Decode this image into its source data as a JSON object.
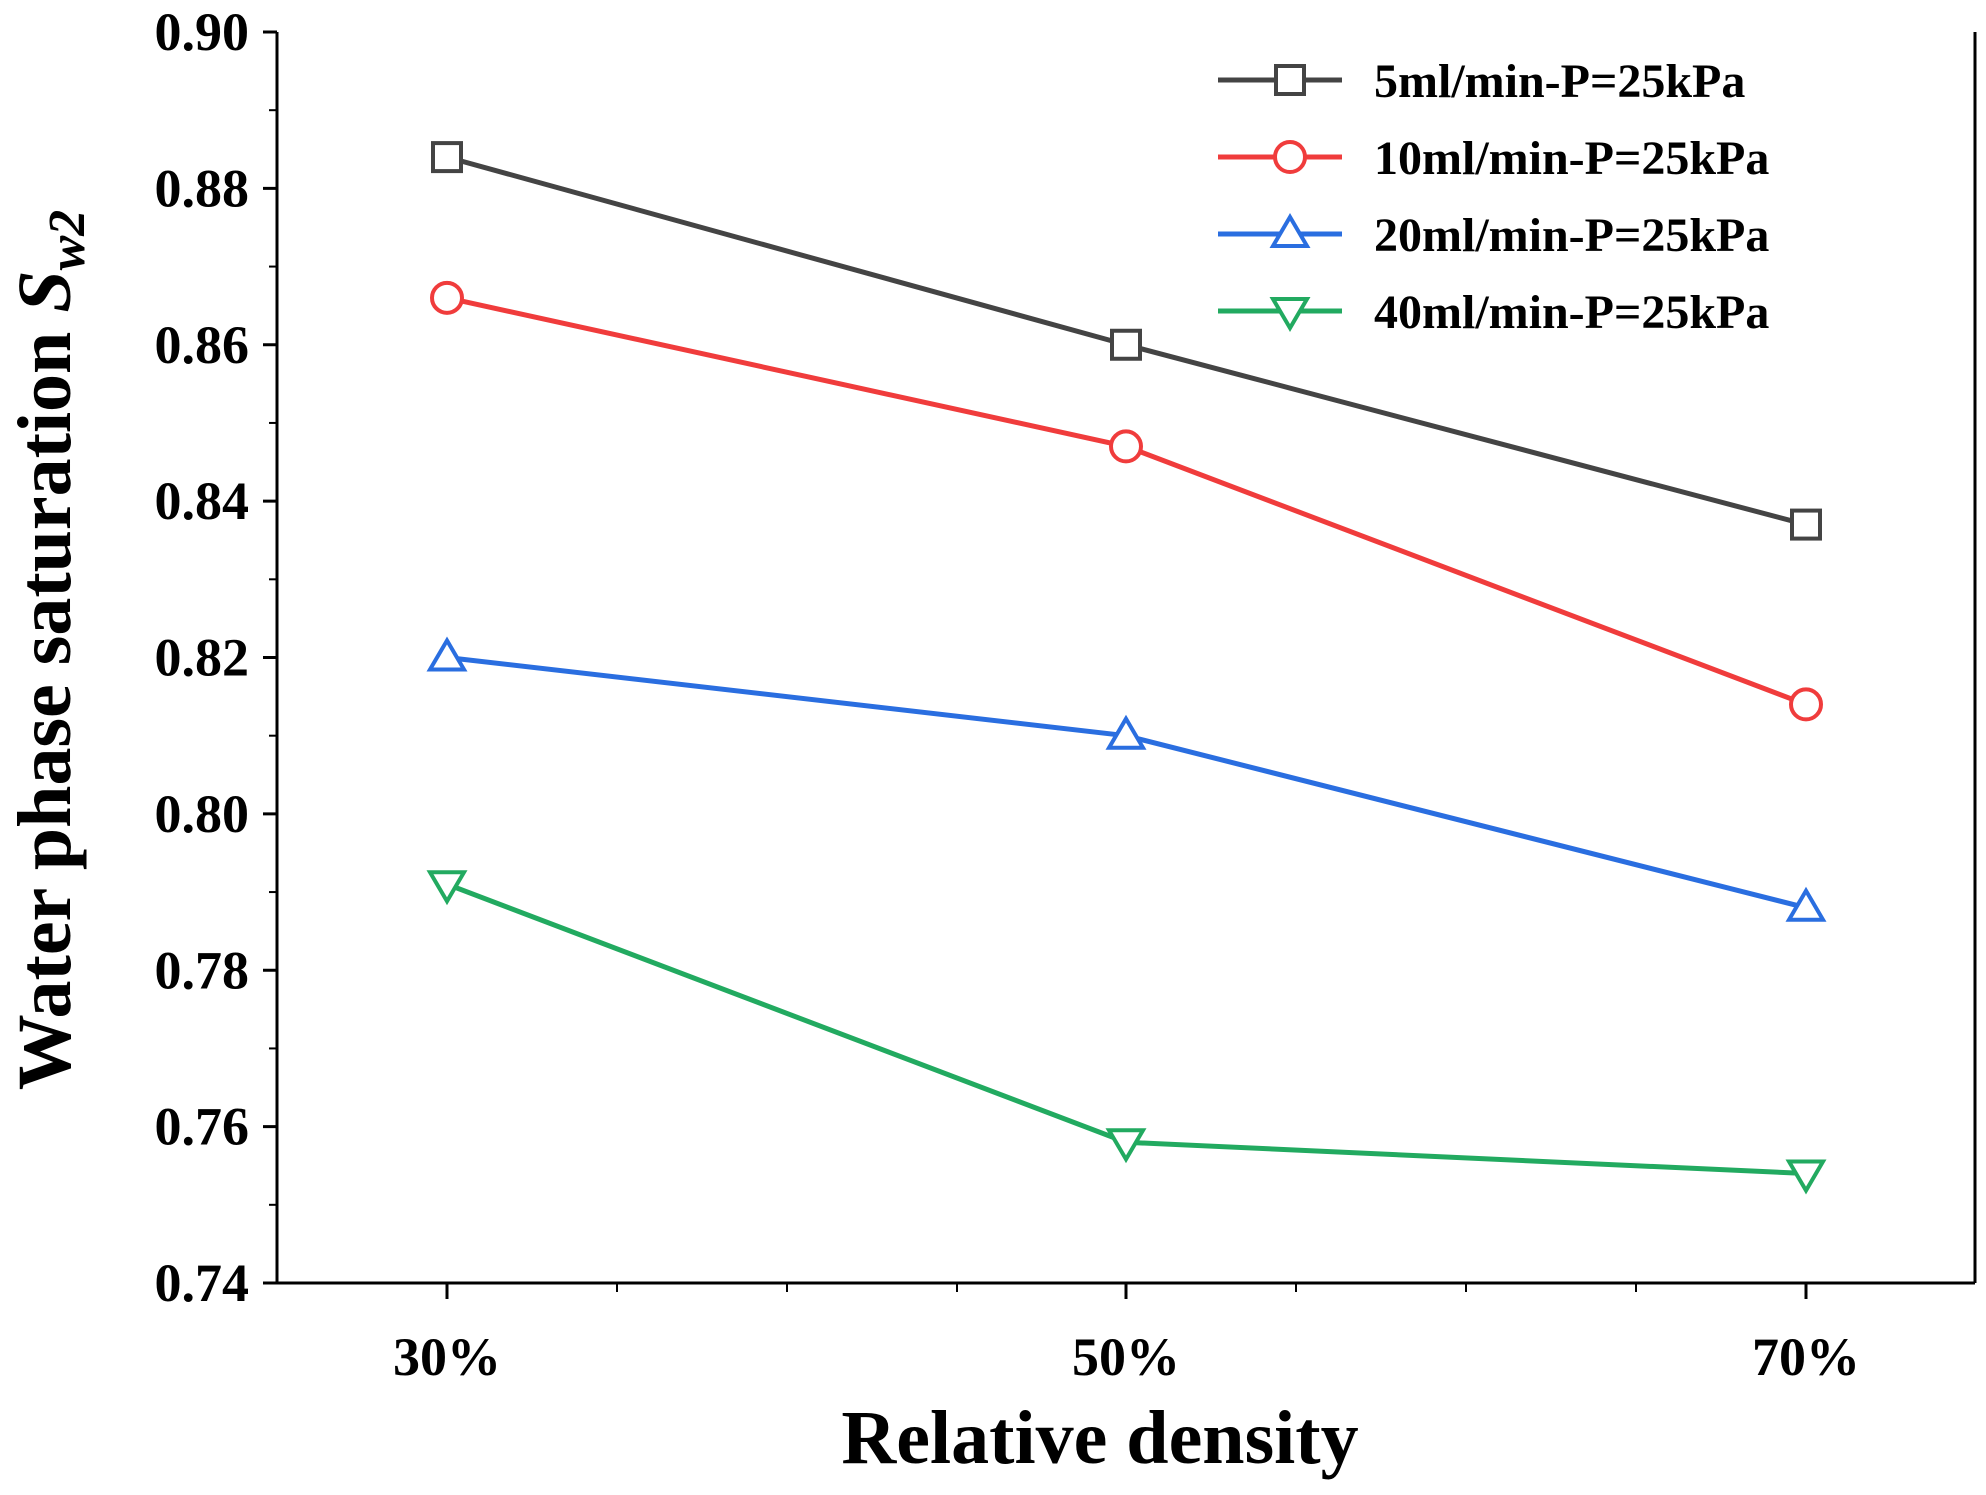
{
  "chart_data": {
    "type": "line",
    "title": "",
    "xlabel": "Relative density",
    "ylabel": "Water phase saturation ",
    "ylabel_symbol": "S",
    "ylabel_subscript": "w2",
    "categories": [
      "30%",
      "50%",
      "70%"
    ],
    "ylim": [
      0.74,
      0.9
    ],
    "yticks": [
      "0.74",
      "0.76",
      "0.78",
      "0.80",
      "0.82",
      "0.84",
      "0.86",
      "0.88",
      "0.90"
    ],
    "legend_position": "top-right",
    "grid": false,
    "series": [
      {
        "name": "5ml/min-P=25kPa",
        "values": [
          0.884,
          0.86,
          0.837
        ],
        "color": "#444444",
        "marker": "square"
      },
      {
        "name": "10ml/min-P=25kPa",
        "values": [
          0.866,
          0.847,
          0.814
        ],
        "color": "#f03c3c",
        "marker": "circle"
      },
      {
        "name": "20ml/min-P=25kPa",
        "values": [
          0.82,
          0.81,
          0.788
        ],
        "color": "#2a6ee0",
        "marker": "triangle-up"
      },
      {
        "name": "40ml/min-P=25kPa",
        "values": [
          0.791,
          0.758,
          0.754
        ],
        "color": "#22aa60",
        "marker": "triangle-down"
      }
    ]
  }
}
